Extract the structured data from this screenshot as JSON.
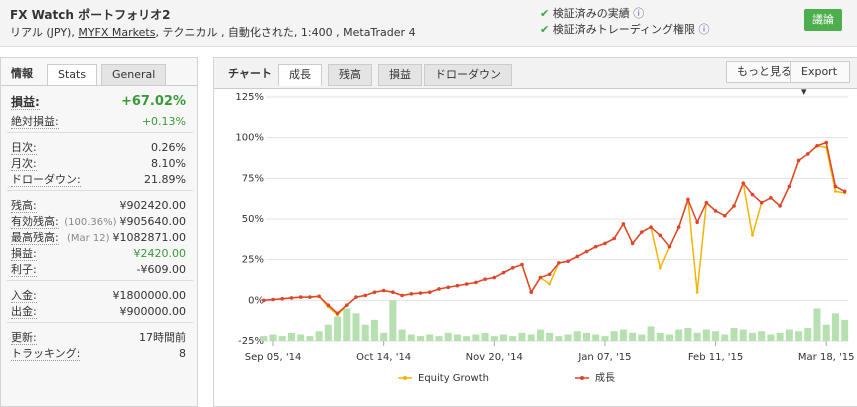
{
  "header": {
    "title": "FX Watch ポートフォリオ2",
    "subtitle_prefix": "リアル (JPY),",
    "broker": "MYFX Markets",
    "subtitle_suffix": ", テクニカル , 自動化された, 1:400 , MetaTrader 4",
    "verifications": [
      "検証済みの実績",
      "検証済みトレーディング権限"
    ],
    "button": "議論"
  },
  "info_panel": {
    "tabs": [
      "情報",
      "Stats",
      "General"
    ],
    "groups": [
      [
        {
          "label": "損益:",
          "value": "+67.02%"
        },
        {
          "label": "絶対損益:",
          "value": "+0.13%"
        }
      ],
      [
        {
          "label": "日次:",
          "value": "0.26%"
        },
        {
          "label": "月次:",
          "value": "8.10%"
        },
        {
          "label": "ドローダウン:",
          "value": "21.89%"
        }
      ],
      [
        {
          "label": "残高:",
          "value": "¥902420.00"
        },
        {
          "label": "有効残高:",
          "note": "(100.36%)",
          "value": "¥905640.00"
        },
        {
          "label": "最高残高:",
          "note": "(Mar 12)",
          "value": "¥1082871.00"
        },
        {
          "label": "損益:",
          "value": "¥2420.00"
        },
        {
          "label": "利子:",
          "value": "-¥609.00"
        }
      ],
      [
        {
          "label": "入金:",
          "value": "¥1800000.00"
        },
        {
          "label": "出金:",
          "value": "¥900000.00"
        }
      ],
      [
        {
          "label": "更新:",
          "value": "17時間前"
        },
        {
          "label": "トラッキング:",
          "value": "8"
        }
      ]
    ]
  },
  "chart_panel": {
    "label": "チャート",
    "tabs": [
      "成長",
      "残高",
      "損益",
      "ドローダウン"
    ],
    "buttons": [
      "もっと見る",
      "Export"
    ]
  },
  "chart_data": {
    "type": "line",
    "categories": [
      null,
      "Sep 05, '14",
      null,
      null,
      null,
      null,
      null,
      null,
      null,
      null,
      null,
      null,
      null,
      "Oct 14, '14",
      null,
      null,
      null,
      null,
      null,
      null,
      null,
      null,
      null,
      null,
      null,
      "Nov 20, '14",
      null,
      null,
      null,
      null,
      null,
      null,
      null,
      null,
      null,
      null,
      null,
      "Jan 07, '15",
      null,
      null,
      null,
      null,
      null,
      null,
      null,
      null,
      null,
      null,
      null,
      "Feb 11, '15",
      null,
      null,
      null,
      null,
      null,
      null,
      null,
      null,
      null,
      null,
      null,
      "Mar 18, '15",
      null,
      null
    ],
    "series": [
      {
        "name": "Equity Growth",
        "color": "#f5b400",
        "values": [
          0,
          0.5,
          1,
          1.5,
          2,
          2,
          2.5,
          -4,
          -9,
          -3,
          2,
          3,
          5,
          6,
          5,
          3,
          4,
          4.5,
          5,
          7,
          8,
          9,
          10,
          11,
          13,
          14,
          17,
          20,
          22,
          5,
          14,
          10,
          23,
          24,
          27,
          30,
          33,
          35,
          38,
          47,
          35,
          42,
          45,
          20,
          33,
          45,
          62,
          5,
          60,
          55,
          52,
          58,
          72,
          40,
          60,
          63,
          58,
          70,
          86,
          90,
          95,
          94,
          67,
          66
        ]
      },
      {
        "name": "成長",
        "color": "#e0442c",
        "values": [
          0,
          0.5,
          1,
          1.5,
          2,
          2,
          2.5,
          -3,
          -8,
          -3,
          2,
          3,
          5,
          6,
          5,
          3,
          4,
          4.5,
          5,
          7,
          8,
          9,
          10,
          11,
          13,
          14,
          17,
          20,
          22,
          5,
          14,
          16,
          23,
          24,
          27,
          30,
          33,
          35,
          38,
          47,
          35,
          42,
          45,
          40,
          33,
          45,
          62,
          48,
          60,
          55,
          52,
          58,
          72,
          65,
          60,
          63,
          58,
          70,
          86,
          90,
          95,
          97,
          70,
          67
        ]
      }
    ],
    "bars": {
      "color": "#b6e0b0",
      "values": [
        -22,
        -21,
        -22,
        -20,
        -21,
        -22,
        -19,
        -15,
        -10,
        -5,
        -8,
        -15,
        -12,
        -20,
        0,
        -18,
        -21,
        -22,
        -21,
        -22,
        -20,
        -21,
        -22,
        -21,
        -20,
        -22,
        -21,
        -22,
        -20,
        -21,
        -18,
        -20,
        -22,
        -21,
        -19,
        -20,
        -21,
        -22,
        -19,
        -18,
        -20,
        -21,
        -16,
        -20,
        -21,
        -18,
        -17,
        -20,
        -18,
        -19,
        -21,
        -17,
        -18,
        -20,
        -19,
        -21,
        -20,
        -18,
        -19,
        -17,
        -5,
        -15,
        -8,
        -12
      ]
    },
    "ylim": [
      -25,
      125
    ],
    "yticks": [
      {
        "value": -25,
        "label": "-25%"
      },
      {
        "value": 0,
        "label": "0%"
      },
      {
        "value": 25,
        "label": "25%"
      },
      {
        "value": 50,
        "label": "50%"
      },
      {
        "value": 75,
        "label": "75%"
      },
      {
        "value": 100,
        "label": "100%"
      },
      {
        "value": 125,
        "label": "125%"
      }
    ],
    "grid": true
  }
}
